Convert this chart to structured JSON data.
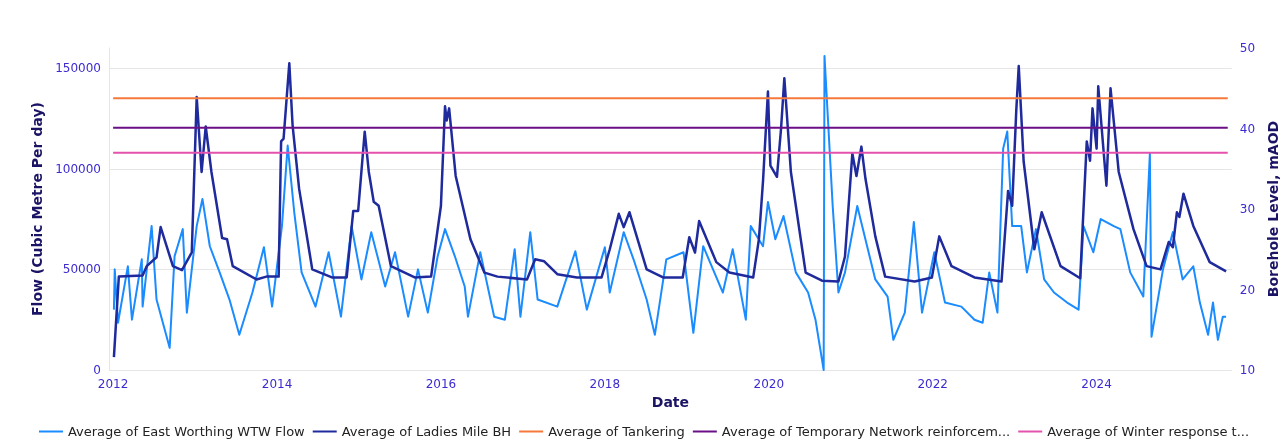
{
  "chart_data": {
    "type": "line",
    "xlabel": "Date",
    "ylabel": "Flow (Cubic Metre Per day)",
    "y2label": "Borehole Level, mAOD",
    "xlim": [
      2011.95,
      2025.65
    ],
    "xticks": [
      2012,
      2014,
      2016,
      2018,
      2020,
      2022,
      2024
    ],
    "ylim": [
      0,
      160000
    ],
    "yticks": [
      0,
      50000,
      100000,
      150000
    ],
    "y2lim": [
      10,
      50
    ],
    "y2ticks": [
      10,
      20,
      30,
      40,
      50
    ],
    "grid": "y",
    "legend": "bottom",
    "marker": "none",
    "line_style": "solid",
    "series": [
      {
        "name": "Average of East Worthing WTW Flow",
        "color": "#1a8cff",
        "x": [
          2012.01,
          2012.02,
          2012.06,
          2012.18,
          2012.23,
          2012.35,
          2012.36,
          2012.47,
          2012.53,
          2012.69,
          2012.75,
          2012.85,
          2012.9,
          2013.02,
          2013.09,
          2013.18,
          2013.3,
          2013.42,
          2013.54,
          2013.7,
          2013.84,
          2013.94,
          2014.06,
          2014.13,
          2014.21,
          2014.3,
          2014.47,
          2014.63,
          2014.78,
          2014.91,
          2015.03,
          2015.15,
          2015.32,
          2015.44,
          2015.6,
          2015.72,
          2015.84,
          2015.96,
          2016.05,
          2016.17,
          2016.29,
          2016.33,
          2016.48,
          2016.65,
          2016.78,
          2016.9,
          2016.97,
          2017.09,
          2017.18,
          2017.42,
          2017.64,
          2017.78,
          2018.0,
          2018.06,
          2018.23,
          2018.35,
          2018.51,
          2018.61,
          2018.75,
          2018.96,
          2019.08,
          2019.2,
          2019.44,
          2019.56,
          2019.72,
          2019.78,
          2019.93,
          2019.99,
          2020.08,
          2020.18,
          2020.33,
          2020.48,
          2020.57,
          2020.67,
          2020.68,
          2020.78,
          2020.85,
          2020.93,
          2021.08,
          2021.2,
          2021.3,
          2021.45,
          2021.52,
          2021.66,
          2021.77,
          2021.87,
          2022.02,
          2022.15,
          2022.35,
          2022.51,
          2022.61,
          2022.69,
          2022.79,
          2022.86,
          2022.91,
          2022.97,
          2023.08,
          2023.15,
          2023.26,
          2023.36,
          2023.48,
          2023.64,
          2023.78,
          2023.84,
          2023.96,
          2024.05,
          2024.21,
          2024.29,
          2024.41,
          2024.57,
          2024.65,
          2024.67,
          2024.81,
          2024.93,
          2025.05,
          2025.18,
          2025.26,
          2025.36,
          2025.42,
          2025.48,
          2025.54,
          2025.58
        ],
        "values": [
          30000,
          50000,
          23500,
          51500,
          25000,
          55000,
          31500,
          71500,
          35000,
          11000,
          56500,
          70000,
          28500,
          71500,
          85000,
          61500,
          48500,
          35000,
          17500,
          38500,
          61000,
          31500,
          71500,
          111500,
          78500,
          48500,
          31500,
          58500,
          26500,
          71500,
          45000,
          68500,
          41500,
          58500,
          26500,
          50000,
          28500,
          56500,
          70000,
          56500,
          41500,
          26500,
          58500,
          26500,
          25000,
          60000,
          26500,
          68500,
          35000,
          31500,
          59000,
          30000,
          61000,
          38500,
          68500,
          55000,
          35000,
          17500,
          55000,
          58500,
          18500,
          61500,
          38500,
          60000,
          25000,
          71500,
          61500,
          83500,
          65000,
          76500,
          48500,
          38500,
          25000,
          0,
          156000,
          81500,
          38500,
          48500,
          81500,
          61500,
          45000,
          36500,
          15000,
          28500,
          73500,
          28500,
          58500,
          33500,
          31500,
          25000,
          23500,
          48500,
          28500,
          110000,
          118500,
          71500,
          71500,
          48500,
          70000,
          45000,
          38500,
          33500,
          30000,
          71500,
          58500,
          75000,
          71500,
          70000,
          48500,
          36500,
          107500,
          16500,
          50000,
          68500,
          45000,
          51500,
          33500,
          17500,
          33500,
          15000,
          26500,
          26500
        ]
      },
      {
        "name": "Average of Ladies Mile BH",
        "color": "#1f2a9c",
        "axis": "y2",
        "x": [
          2012.01,
          2012.07,
          2012.36,
          2012.41,
          2012.53,
          2012.58,
          2012.73,
          2012.84,
          2012.96,
          2013.02,
          2013.08,
          2013.13,
          2013.2,
          2013.33,
          2013.39,
          2013.46,
          2013.75,
          2013.87,
          2014.02,
          2014.05,
          2014.08,
          2014.15,
          2014.19,
          2014.27,
          2014.43,
          2014.67,
          2014.85,
          2014.93,
          2014.99,
          2015.07,
          2015.12,
          2015.18,
          2015.24,
          2015.39,
          2015.68,
          2015.88,
          2016.0,
          2016.05,
          2016.07,
          2016.1,
          2016.18,
          2016.36,
          2016.53,
          2016.69,
          2017.05,
          2017.15,
          2017.26,
          2017.42,
          2017.66,
          2017.96,
          2018.06,
          2018.17,
          2018.23,
          2018.3,
          2018.51,
          2018.71,
          2018.95,
          2019.03,
          2019.1,
          2019.15,
          2019.36,
          2019.52,
          2019.81,
          2019.88,
          2019.93,
          2019.99,
          2020.02,
          2020.1,
          2020.15,
          2020.19,
          2020.27,
          2020.45,
          2020.65,
          2020.85,
          2020.93,
          2021.02,
          2021.07,
          2021.13,
          2021.18,
          2021.3,
          2021.42,
          2021.78,
          2021.99,
          2022.08,
          2022.23,
          2022.51,
          2022.84,
          2022.92,
          2022.97,
          2023.02,
          2023.05,
          2023.11,
          2023.24,
          2023.33,
          2023.56,
          2023.8,
          2023.88,
          2023.92,
          2023.95,
          2024.0,
          2024.02,
          2024.12,
          2024.17,
          2024.27,
          2024.45,
          2024.61,
          2024.78,
          2024.88,
          2024.93,
          2024.98,
          2025.01,
          2025.06,
          2025.18,
          2025.38,
          2025.58
        ],
        "values": [
          11.6,
          21.6,
          21.75,
          22.9,
          24,
          27.75,
          22.9,
          22.4,
          24.6,
          43.9,
          34.6,
          40.25,
          34.6,
          26.4,
          26.25,
          22.9,
          21.25,
          21.6,
          21.6,
          38.4,
          38.75,
          48.1,
          40.4,
          32.5,
          22.5,
          21.5,
          21.5,
          29.75,
          29.75,
          39.6,
          34.6,
          30.9,
          30.4,
          22.9,
          21.5,
          21.6,
          30.4,
          42.75,
          41,
          42.5,
          34.1,
          26.25,
          22.1,
          21.6,
          21.25,
          23.75,
          23.5,
          21.9,
          21.5,
          21.5,
          25,
          29.4,
          27.75,
          29.6,
          22.5,
          21.5,
          21.5,
          26.5,
          24.6,
          28.5,
          23.4,
          22.1,
          21.5,
          26.25,
          33.5,
          44.6,
          35.4,
          34,
          40,
          46.25,
          34.6,
          22.1,
          21.1,
          21,
          24.1,
          36.9,
          34.1,
          37.75,
          33.75,
          26.6,
          21.6,
          21,
          21.5,
          26.6,
          22.9,
          21.5,
          21,
          32.25,
          30.4,
          42.25,
          47.75,
          35.9,
          25,
          29.6,
          22.9,
          21.4,
          38.4,
          36,
          42.5,
          37.5,
          45.25,
          32.9,
          45,
          34.6,
          27.5,
          22.9,
          22.5,
          25.9,
          25.25,
          29.6,
          29,
          31.9,
          27.9,
          23.4,
          22.25
        ]
      },
      {
        "name": "Average of Tankering",
        "color": "#f4793b",
        "axis": "y2",
        "x": [
          2012.0,
          2025.6
        ],
        "values": [
          43.75,
          43.75
        ]
      },
      {
        "name": "Average of Temporary Network reinforcem...",
        "color": "#6a0f86",
        "axis": "y2",
        "x": [
          2012.0,
          2025.6
        ],
        "values": [
          40.1,
          40.1
        ]
      },
      {
        "name": "Average of Winter response t...",
        "color": "#e352ad",
        "axis": "y2",
        "x": [
          2012.0,
          2025.6
        ],
        "values": [
          37,
          37
        ]
      }
    ]
  }
}
